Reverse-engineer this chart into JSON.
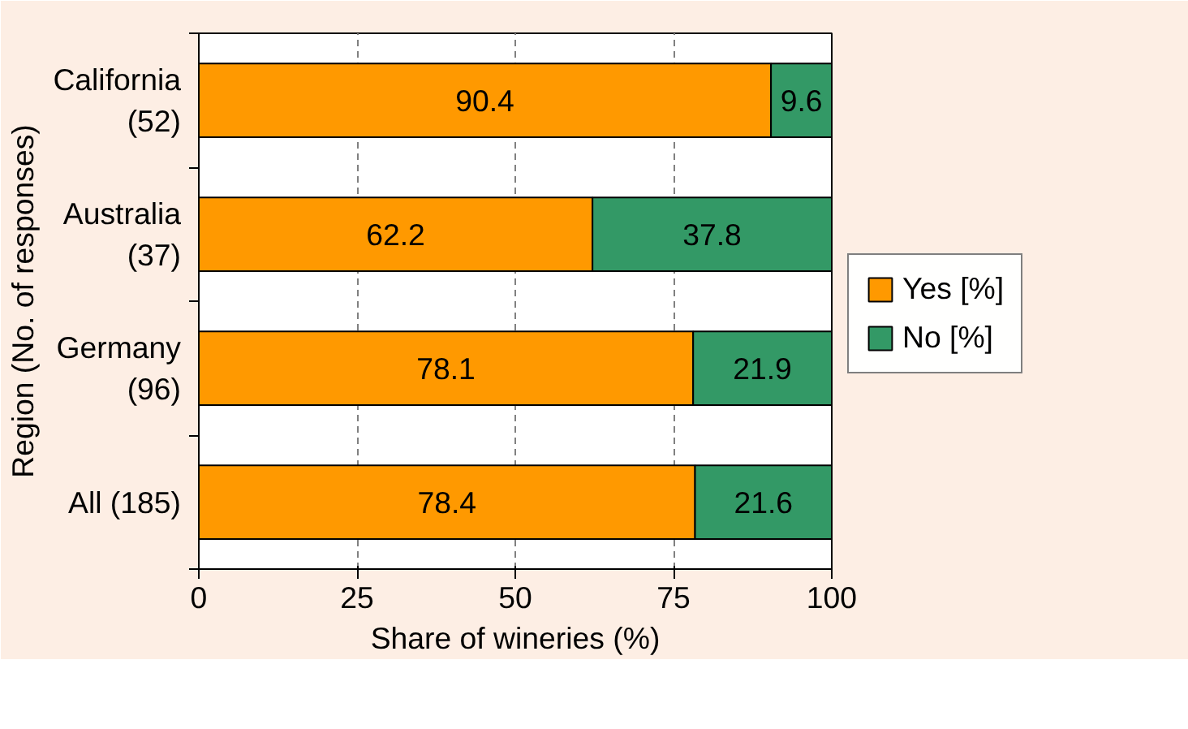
{
  "chart_data": {
    "type": "bar",
    "orientation": "horizontal",
    "stacked": true,
    "xlabel": "Share of wineries (%)",
    "ylabel": "Region (No. of responses)",
    "categories": [
      "California\n(52)",
      "Australia\n(37)",
      "Germany\n(96)",
      "All (185)"
    ],
    "series": [
      {
        "name": "Yes [%]",
        "color": "#ff9900",
        "values": [
          90.4,
          62.2,
          78.1,
          78.4
        ]
      },
      {
        "name": "No [%]",
        "color": "#339966",
        "values": [
          9.6,
          37.8,
          21.9,
          21.6
        ]
      }
    ],
    "xlim": [
      0,
      100
    ],
    "xticks": [
      0,
      25,
      50,
      75,
      100
    ],
    "grid": "x",
    "legend": "right",
    "data_labels": true
  }
}
